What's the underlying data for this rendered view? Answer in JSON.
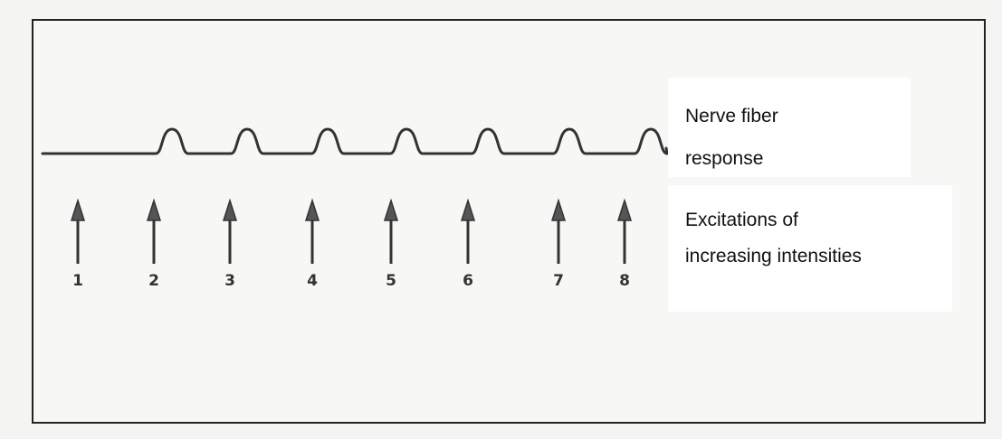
{
  "response_label": [
    "Nerve fiber",
    "response"
  ],
  "excitation_label": [
    "Excitations of",
    "increasing intensities"
  ],
  "stimuli": [
    "1",
    "2",
    "3",
    "4",
    "5",
    "6",
    "7",
    "8"
  ]
}
